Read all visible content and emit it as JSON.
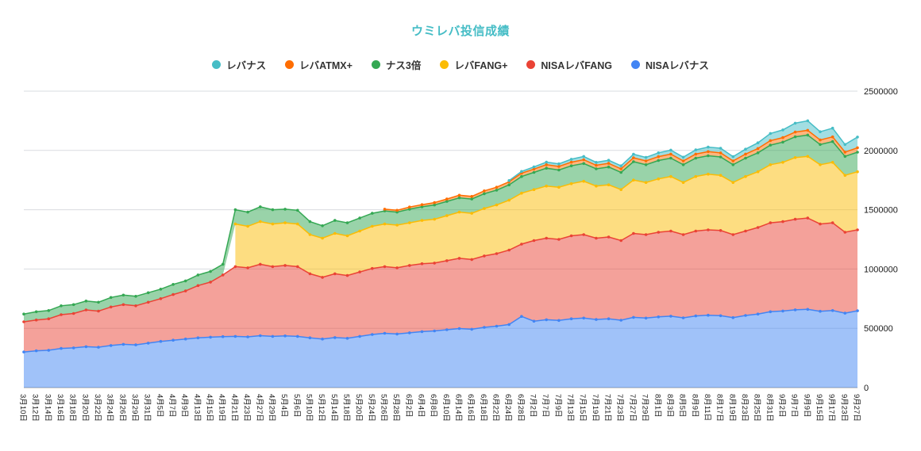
{
  "chart_data": {
    "type": "area",
    "stacked": true,
    "title": "ウミレバ投信成績",
    "title_color": "#46BDC6",
    "legend_position": "top",
    "grid": true,
    "y_axis": {
      "position": "right",
      "min": 0,
      "max": 2500000,
      "tick_interval": 500000,
      "ticks": [
        0,
        500000,
        1000000,
        1500000,
        2000000,
        2500000
      ],
      "tick_labels": [
        "0",
        "500000",
        "1000000",
        "1500000",
        "2000000",
        "2500000"
      ]
    },
    "x_labels": [
      "3月10日",
      "3月12日",
      "3月14日",
      "3月16日",
      "3月18日",
      "3月20日",
      "3月22日",
      "3月24日",
      "3月26日",
      "3月29日",
      "3月31日",
      "4月5日",
      "4月7日",
      "4月9日",
      "4月13日",
      "4月15日",
      "4月19日",
      "4月21日",
      "4月23日",
      "4月27日",
      "4月29日",
      "5月4日",
      "5月6日",
      "5月10日",
      "5月12日",
      "5月14日",
      "5月18日",
      "5月20日",
      "5月24日",
      "5月26日",
      "5月28日",
      "6月2日",
      "6月4日",
      "6月8日",
      "6月10日",
      "6月14日",
      "6月16日",
      "6月18日",
      "6月22日",
      "6月24日",
      "6月28日",
      "7月2日",
      "7月7日",
      "7月9日",
      "7月13日",
      "7月15日",
      "7月19日",
      "7月21日",
      "7月23日",
      "7月27日",
      "7月29日",
      "8月1日",
      "8月3日",
      "8月5日",
      "8月9日",
      "8月11日",
      "8月17日",
      "8月19日",
      "8月23日",
      "8月25日",
      "8月31日",
      "9月2日",
      "9月7日",
      "9月9日",
      "9月15日",
      "9月17日",
      "9月23日",
      "9月27日"
    ],
    "stack_order_bottom_to_top": [
      "NISAレバナス",
      "NISAレバFANG",
      "レバFANG+",
      "ナス3倍",
      "レバATMX+",
      "レバナス"
    ],
    "series": [
      {
        "name": "レバナス",
        "color": "#46BDC6",
        "values": [
          null,
          null,
          null,
          null,
          null,
          null,
          null,
          null,
          null,
          null,
          null,
          null,
          null,
          null,
          null,
          null,
          null,
          null,
          null,
          null,
          null,
          null,
          null,
          null,
          null,
          null,
          null,
          null,
          null,
          null,
          null,
          null,
          null,
          null,
          null,
          null,
          null,
          null,
          null,
          10000,
          15000,
          18000,
          22000,
          22000,
          25000,
          27000,
          25000,
          26000,
          25000,
          30000,
          29000,
          32000,
          34000,
          31000,
          36000,
          38000,
          40000,
          36000,
          42000,
          48000,
          60000,
          65000,
          75000,
          80000,
          70000,
          74000,
          64000,
          90000
        ]
      },
      {
        "name": "レバATMX+",
        "color": "#FF6D01",
        "values": [
          null,
          null,
          null,
          null,
          null,
          null,
          null,
          null,
          null,
          null,
          null,
          null,
          null,
          null,
          null,
          null,
          null,
          null,
          null,
          null,
          null,
          null,
          null,
          null,
          null,
          null,
          null,
          null,
          null,
          15000,
          15000,
          18000,
          18000,
          20000,
          20000,
          22000,
          22000,
          24000,
          25000,
          26000,
          28000,
          28000,
          30000,
          30000,
          31000,
          32000,
          30000,
          31000,
          30000,
          33000,
          32000,
          33000,
          34000,
          32000,
          34000,
          35000,
          34000,
          32000,
          34000,
          36000,
          38000,
          38000,
          40000,
          40000,
          38000,
          39000,
          36000,
          38000
        ]
      },
      {
        "name": "ナス3倍",
        "color": "#34A853",
        "values": [
          65000,
          70000,
          70000,
          75000,
          75000,
          75000,
          75000,
          80000,
          80000,
          80000,
          80000,
          80000,
          85000,
          85000,
          90000,
          90000,
          90000,
          120000,
          120000,
          125000,
          120000,
          115000,
          115000,
          110000,
          105000,
          110000,
          110000,
          110000,
          110000,
          110000,
          110000,
          115000,
          115000,
          120000,
          120000,
          120000,
          120000,
          125000,
          125000,
          130000,
          140000,
          145000,
          150000,
          145000,
          150000,
          150000,
          145000,
          150000,
          145000,
          155000,
          150000,
          155000,
          155000,
          150000,
          155000,
          155000,
          155000,
          150000,
          155000,
          160000,
          165000,
          170000,
          175000,
          180000,
          170000,
          175000,
          160000,
          165000
        ]
      },
      {
        "name": "レバFANG+",
        "color": "#FBBC04",
        "values": [
          null,
          null,
          null,
          null,
          null,
          null,
          null,
          null,
          null,
          null,
          null,
          null,
          null,
          null,
          null,
          null,
          null,
          360000,
          350000,
          360000,
          360000,
          360000,
          360000,
          330000,
          330000,
          340000,
          335000,
          345000,
          355000,
          360000,
          360000,
          360000,
          365000,
          370000,
          380000,
          390000,
          390000,
          400000,
          410000,
          420000,
          430000,
          430000,
          440000,
          440000,
          440000,
          450000,
          440000,
          440000,
          430000,
          450000,
          440000,
          450000,
          460000,
          440000,
          460000,
          470000,
          465000,
          440000,
          460000,
          470000,
          490000,
          500000,
          520000,
          520000,
          500000,
          510000,
          480000,
          490000
        ]
      },
      {
        "name": "NISAレバFANG",
        "color": "#EA4335",
        "values": [
          255000,
          260000,
          265000,
          285000,
          290000,
          310000,
          305000,
          325000,
          335000,
          330000,
          345000,
          360000,
          385000,
          405000,
          440000,
          465000,
          520000,
          588000,
          582000,
          602000,
          588000,
          594000,
          588000,
          540000,
          520000,
          538000,
          529000,
          543000,
          557000,
          562000,
          558000,
          568000,
          573000,
          572000,
          582000,
          592000,
          588000,
          602000,
          612000,
          628000,
          610000,
          680000,
          688000,
          684000,
          700000,
          704000,
          686000,
          690000,
          672000,
          708000,
          704000,
          714000,
          718000,
          702000,
          716000,
          720000,
          719000,
          700000,
          712000,
          730000,
          750000,
          754000,
          764000,
          770000,
          736000,
          740000,
          682000,
          682000
        ]
      },
      {
        "name": "NISAレバナス",
        "color": "#4285F4",
        "values": [
          300000,
          310000,
          315000,
          330000,
          335000,
          345000,
          340000,
          355000,
          365000,
          360000,
          375000,
          390000,
          400000,
          410000,
          420000,
          425000,
          430000,
          432000,
          428000,
          438000,
          432000,
          436000,
          432000,
          420000,
          410000,
          422000,
          416000,
          432000,
          448000,
          458000,
          452000,
          462000,
          472000,
          478000,
          488000,
          498000,
          492000,
          508000,
          518000,
          532000,
          600000,
          560000,
          572000,
          566000,
          580000,
          586000,
          574000,
          580000,
          568000,
          592000,
          586000,
          596000,
          602000,
          588000,
          604000,
          610000,
          606000,
          590000,
          608000,
          620000,
          640000,
          646000,
          656000,
          660000,
          644000,
          650000,
          628000,
          648000
        ]
      }
    ]
  }
}
